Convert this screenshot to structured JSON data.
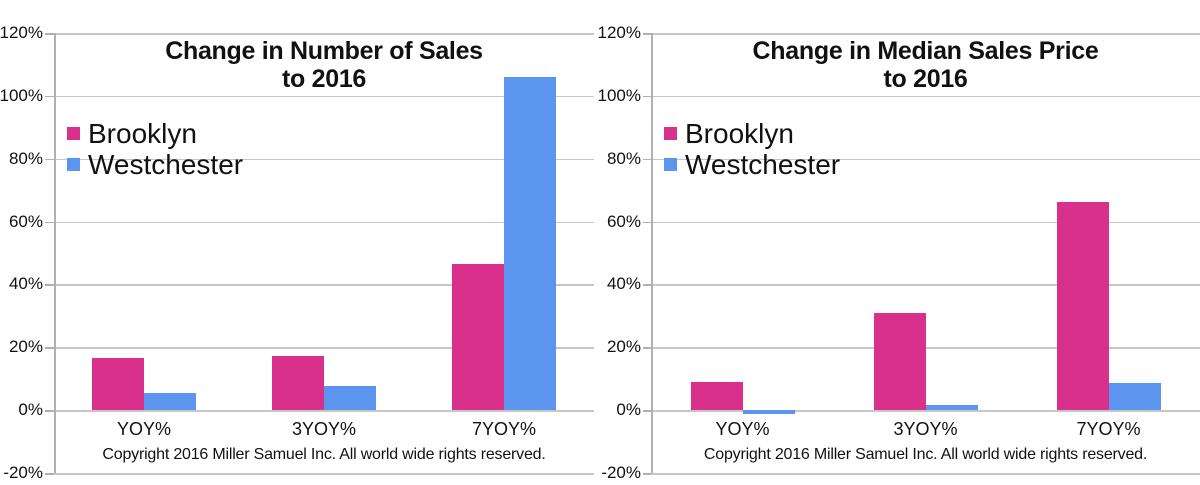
{
  "chart_data": [
    {
      "type": "bar",
      "title": "Change in Number of Sales to 2016",
      "title_lines": [
        "Change in Number of Sales",
        "to 2016"
      ],
      "categories": [
        "YOY%",
        "3YOY%",
        "7YOY%"
      ],
      "series": [
        {
          "name": "Brooklyn",
          "color": "#D9308C",
          "values": [
            16.5,
            17.3,
            46.5
          ]
        },
        {
          "name": "Westchester",
          "color": "#5B95F0",
          "values": [
            5.5,
            7.8,
            106.0
          ]
        }
      ],
      "xlabel": "",
      "ylabel": "",
      "ylim": [
        -20,
        120
      ],
      "ytick_step": 20,
      "ytick_labels": [
        "120%",
        "100%",
        "80%",
        "60%",
        "40%",
        "20%",
        "0%",
        "-20%"
      ],
      "grid": true,
      "legend_position": "inside-upper-left",
      "footnote": "Copyright 2016 Miller Samuel Inc.  All world wide rights reserved."
    },
    {
      "type": "bar",
      "title": "Change in Median Sales Price to 2016",
      "title_lines": [
        "Change in Median Sales Price",
        "to 2016"
      ],
      "categories": [
        "YOY%",
        "3YOY%",
        "7YOY%"
      ],
      "series": [
        {
          "name": "Brooklyn",
          "color": "#D9308C",
          "values": [
            9.0,
            31.0,
            66.3
          ]
        },
        {
          "name": "Westchester",
          "color": "#5B95F0",
          "values": [
            -1.4,
            1.5,
            8.8
          ]
        }
      ],
      "xlabel": "",
      "ylabel": "",
      "ylim": [
        -20,
        120
      ],
      "ytick_step": 20,
      "ytick_labels": [
        "120%",
        "100%",
        "80%",
        "60%",
        "40%",
        "20%",
        "0%",
        "-20%"
      ],
      "grid": true,
      "legend_position": "inside-upper-left",
      "footnote": "Copyright 2016 Miller Samuel Inc.  All world wide rights reserved."
    }
  ]
}
